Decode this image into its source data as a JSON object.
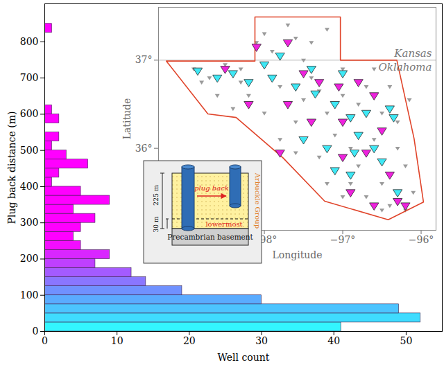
{
  "chart_data": [
    {
      "type": "histogram",
      "orientation": "horizontal",
      "xlabel": "Well count",
      "ylabel": "Plug back distance (m)",
      "bins": [
        0,
        25,
        50,
        75,
        100,
        125,
        150,
        175,
        200,
        225,
        250,
        275,
        300,
        325,
        350,
        375,
        400,
        425,
        450,
        475,
        500,
        525,
        550,
        575,
        600,
        625,
        650,
        675,
        700,
        725,
        750,
        775,
        800,
        825,
        850
      ],
      "values": [
        41,
        52,
        49,
        30,
        19,
        14,
        12,
        7,
        9,
        5,
        4,
        5,
        7,
        4,
        9,
        5,
        1,
        2,
        6,
        3,
        1,
        2,
        0,
        2,
        1,
        0,
        0,
        0,
        0,
        0,
        0,
        0,
        0,
        1
      ],
      "colors": [
        "#33f6ff",
        "#3fdcff",
        "#4cc4ff",
        "#5aabff",
        "#7091ff",
        "#8a76ff",
        "#a45bff",
        "#bf40ff",
        "#d926ff",
        "#f20dff",
        "#ff00ff",
        "#ff00ff",
        "#ff00ff",
        "#ff00ff",
        "#ff00ff",
        "#ff00ff",
        "#ff00ff",
        "#ff00ff",
        "#ff00ff",
        "#ff00ff",
        "#ff00ff",
        "#ff00ff",
        "#ff00ff",
        "#ff00ff",
        "#ff00ff",
        "#ff00ff",
        "#ff00ff",
        "#ff00ff",
        "#ff00ff",
        "#ff00ff",
        "#ff00ff",
        "#ff00ff",
        "#ff00ff",
        "#ff00ff"
      ],
      "xlim": [
        0,
        55
      ],
      "xticks": [
        0,
        10,
        20,
        30,
        40,
        50
      ],
      "ylim": [
        0,
        905
      ],
      "yticks": [
        0,
        100,
        200,
        300,
        400,
        500,
        600,
        700,
        800
      ],
      "grid": false
    },
    {
      "type": "scatter",
      "xlabel": "Longitude",
      "ylabel": "Latitude",
      "xlim": [
        -99.35,
        -95.81
      ],
      "xticks": [
        {
          "value": -98,
          "label": "−98°"
        },
        {
          "value": -97,
          "label": "−97°"
        },
        {
          "value": -96,
          "label": "−96°"
        }
      ],
      "ylim": [
        35.07,
        37.6
      ],
      "yticks": [
        {
          "value": 36,
          "label": "36°"
        },
        {
          "value": 37,
          "label": "37°"
        }
      ],
      "grid": false,
      "annotations": [
        "Kansas",
        "Oklahoma"
      ],
      "state_line": {
        "color": "#bbbbbb",
        "x": [
          -99.35,
          -95.81
        ],
        "y": [
          37,
          37
        ]
      },
      "boundary": {
        "color": "#e0442a",
        "x": [
          -99.25,
          -98.12,
          -98.12,
          -97.03,
          -97.03,
          -96.31,
          -96.09,
          -95.97,
          -96.42,
          -97.23,
          -97.76,
          -98.36,
          -98.72,
          -99.25
        ],
        "y": [
          36.99,
          36.99,
          37.49,
          37.49,
          37.0,
          37.0,
          36.11,
          35.39,
          35.19,
          35.4,
          35.89,
          36.35,
          36.39,
          36.99
        ]
      },
      "series": [
        {
          "color": "#9a9a9a",
          "marker": "triangle-down",
          "x": [
            -98.9,
            -98.7,
            -98.5,
            -98.3,
            -98.0,
            -97.7,
            -97.4,
            -97.2,
            -97.9,
            -98.6,
            -98.2,
            -97.8,
            -97.4,
            -97.0,
            -96.6,
            -96.4,
            -96.8,
            -97.2,
            -97.6,
            -98.0,
            -98.4,
            -96.3,
            -96.6,
            -96.9,
            -97.3,
            -97.6,
            -96.2,
            -96.5,
            -96.9,
            -97.2,
            -96.1,
            -96.4,
            -96.7,
            -97.0,
            -96.2,
            -98.8,
            -98.1,
            -97.5,
            -97.0,
            -96.5,
            -97.8,
            -97.5,
            -96.7,
            -96.3,
            -96.8,
            -97.1,
            -98.3,
            -97.6,
            -97.3,
            -96.15,
            -96.5
          ],
          "y": [
            36.9,
            36.8,
            36.95,
            36.9,
            37.3,
            37.4,
            37.2,
            37.35,
            37.1,
            36.6,
            36.6,
            36.7,
            36.8,
            36.9,
            36.9,
            36.7,
            36.5,
            36.4,
            36.3,
            36.4,
            36.45,
            36.3,
            36.1,
            36.0,
            35.9,
            35.95,
            35.8,
            35.6,
            35.6,
            35.6,
            35.5,
            35.35,
            35.45,
            35.45,
            35.3,
            36.75,
            37.2,
            37.0,
            36.6,
            36.4,
            36.1,
            36.55,
            36.7,
            36.0,
            35.8,
            36.15,
            36.75,
            37.25,
            36.65,
            36.55,
            35.3
          ]
        },
        {
          "color": "#3ee8f5",
          "marker": "triangle-down",
          "x": [
            -98.85,
            -98.6,
            -98.4,
            -98.0,
            -97.8,
            -97.9,
            -97.6,
            -97.35,
            -97.1,
            -96.9,
            -96.7,
            -96.4,
            -96.35,
            -96.8,
            -96.6,
            -97.2,
            -97.5,
            -96.5,
            -96.9,
            -97.1,
            -96.3,
            -97.0,
            -98.2,
            -97.4,
            -96.85
          ],
          "y": [
            36.88,
            36.8,
            36.85,
            36.95,
            37.05,
            36.8,
            36.7,
            36.62,
            36.5,
            36.35,
            36.4,
            36.45,
            36.35,
            36.15,
            36.0,
            36.0,
            36.1,
            35.85,
            35.7,
            35.75,
            35.5,
            36.85,
            36.75,
            36.9,
            35.95
          ]
        },
        {
          "color": "#ee22dd",
          "marker": "triangle-down",
          "x": [
            -98.5,
            -98.1,
            -97.7,
            -97.5,
            -97.3,
            -97.05,
            -96.8,
            -96.6,
            -97.0,
            -96.5,
            -97.4,
            -97.7,
            -96.7,
            -97.0,
            -96.4,
            -96.9,
            -96.6,
            -96.3,
            -97.8,
            -98.2,
            -96.2
          ],
          "y": [
            36.9,
            37.15,
            37.2,
            36.85,
            36.75,
            36.7,
            36.75,
            36.6,
            36.3,
            36.2,
            36.3,
            36.5,
            35.95,
            35.9,
            35.7,
            35.5,
            35.35,
            35.4,
            35.95,
            36.5,
            35.35
          ]
        }
      ]
    }
  ],
  "schematic": {
    "depth_label": "225 m",
    "bottom_label": "30 m",
    "arrow_label": "plug back",
    "formation_label": "Arbuckle Group",
    "zone_label": "lowermost",
    "basement_label": "Precambrian basement"
  }
}
